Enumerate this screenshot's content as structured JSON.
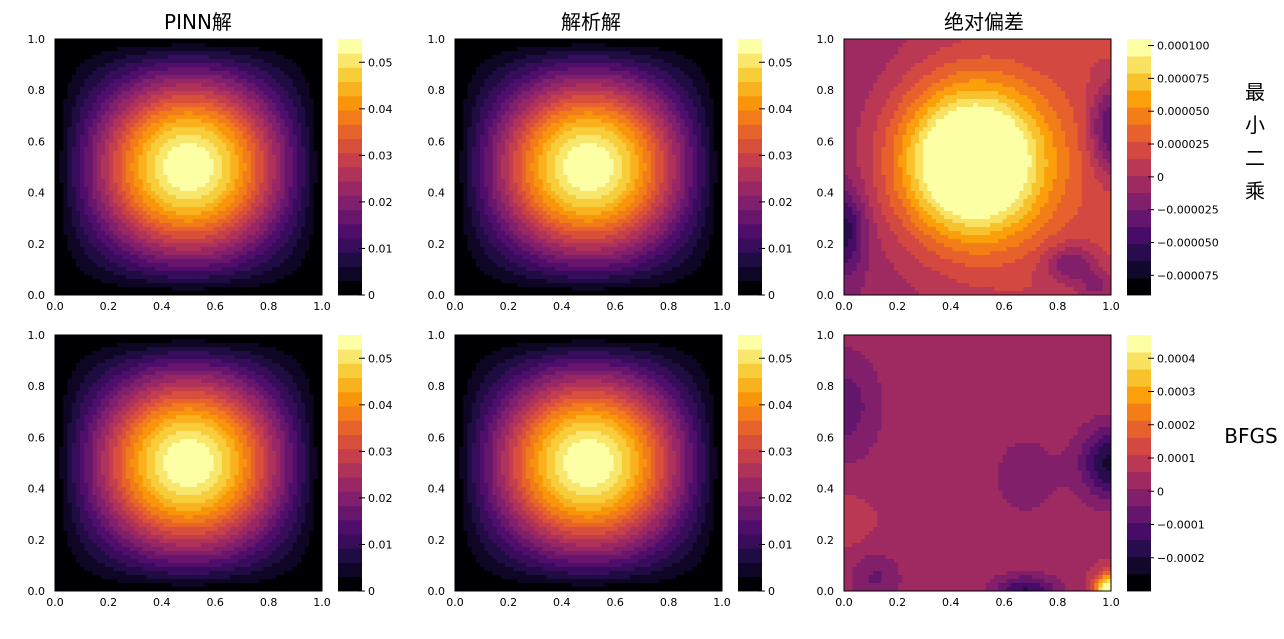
{
  "columns": [
    {
      "title": "PINN解"
    },
    {
      "title": "解析解"
    },
    {
      "title": "绝对偏差"
    }
  ],
  "rows": [
    {
      "label_chars": [
        "最",
        "小",
        "二",
        "乘"
      ]
    },
    {
      "label": "BFGS"
    }
  ],
  "colormap": {
    "name": "inferno",
    "stops": [
      "#000004",
      "#1b0c41",
      "#4a0c6b",
      "#781c6d",
      "#a52c60",
      "#cf4446",
      "#ed6925",
      "#fb9b06",
      "#f7d13d",
      "#fcffa4"
    ]
  },
  "chart_data": [
    {
      "type": "contour",
      "row": 0,
      "col": 0,
      "title": "PINN解",
      "xlim": [
        0.0,
        1.0
      ],
      "ylim": [
        0.0,
        1.0
      ],
      "xticks": [
        "0.0",
        "0.2",
        "0.4",
        "0.6",
        "0.8",
        "1.0"
      ],
      "yticks": [
        "0.0",
        "0.2",
        "0.4",
        "0.6",
        "0.8",
        "1.0"
      ],
      "value_range": [
        0,
        0.055
      ],
      "levels": 18,
      "colorbar_ticks": [
        {
          "value": 0,
          "label": "0"
        },
        {
          "value": 0.01,
          "label": "0.01"
        },
        {
          "value": 0.02,
          "label": "0.02"
        },
        {
          "value": 0.03,
          "label": "0.03"
        },
        {
          "value": 0.04,
          "label": "0.04"
        },
        {
          "value": 0.05,
          "label": "0.05"
        }
      ]
    },
    {
      "type": "contour",
      "row": 0,
      "col": 1,
      "title": "解析解",
      "xlim": [
        0.0,
        1.0
      ],
      "ylim": [
        0.0,
        1.0
      ],
      "xticks": [
        "0.0",
        "0.2",
        "0.4",
        "0.6",
        "0.8",
        "1.0"
      ],
      "yticks": [
        "0.0",
        "0.2",
        "0.4",
        "0.6",
        "0.8",
        "1.0"
      ],
      "value_range": [
        0,
        0.055
      ],
      "levels": 18,
      "colorbar_ticks": [
        {
          "value": 0,
          "label": "0"
        },
        {
          "value": 0.01,
          "label": "0.01"
        },
        {
          "value": 0.02,
          "label": "0.02"
        },
        {
          "value": 0.03,
          "label": "0.03"
        },
        {
          "value": 0.04,
          "label": "0.04"
        },
        {
          "value": 0.05,
          "label": "0.05"
        }
      ]
    },
    {
      "type": "contour",
      "row": 0,
      "col": 2,
      "title": "绝对偏差",
      "xlim": [
        0.0,
        1.0
      ],
      "ylim": [
        0.0,
        1.0
      ],
      "xticks": [
        "0.0",
        "0.2",
        "0.4",
        "0.6",
        "0.8",
        "1.0"
      ],
      "yticks": [
        "0.0",
        "0.2",
        "0.4",
        "0.6",
        "0.8",
        "1.0"
      ],
      "value_range": [
        -9e-05,
        0.000105
      ],
      "levels": 15,
      "colorbar_ticks": [
        {
          "value": -7.5e-05,
          "label": "−0.000075"
        },
        {
          "value": -5e-05,
          "label": "−0.000050"
        },
        {
          "value": -2.5e-05,
          "label": "−0.000025"
        },
        {
          "value": 0,
          "label": "0"
        },
        {
          "value": 2.5e-05,
          "label": "0.000025"
        },
        {
          "value": 5e-05,
          "label": "0.000050"
        },
        {
          "value": 7.5e-05,
          "label": "0.000075"
        },
        {
          "value": 0.0001,
          "label": "0.000100"
        }
      ]
    },
    {
      "type": "contour",
      "row": 1,
      "col": 0,
      "xlim": [
        0.0,
        1.0
      ],
      "ylim": [
        0.0,
        1.0
      ],
      "xticks": [
        "0.0",
        "0.2",
        "0.4",
        "0.6",
        "0.8",
        "1.0"
      ],
      "yticks": [
        "0.0",
        "0.2",
        "0.4",
        "0.6",
        "0.8",
        "1.0"
      ],
      "value_range": [
        0,
        0.055
      ],
      "levels": 18,
      "colorbar_ticks": [
        {
          "value": 0,
          "label": "0"
        },
        {
          "value": 0.01,
          "label": "0.01"
        },
        {
          "value": 0.02,
          "label": "0.02"
        },
        {
          "value": 0.03,
          "label": "0.03"
        },
        {
          "value": 0.04,
          "label": "0.04"
        },
        {
          "value": 0.05,
          "label": "0.05"
        }
      ]
    },
    {
      "type": "contour",
      "row": 1,
      "col": 1,
      "xlim": [
        0.0,
        1.0
      ],
      "ylim": [
        0.0,
        1.0
      ],
      "xticks": [
        "0.0",
        "0.2",
        "0.4",
        "0.6",
        "0.8",
        "1.0"
      ],
      "yticks": [
        "0.0",
        "0.2",
        "0.4",
        "0.6",
        "0.8",
        "1.0"
      ],
      "value_range": [
        0,
        0.055
      ],
      "levels": 18,
      "colorbar_ticks": [
        {
          "value": 0,
          "label": "0"
        },
        {
          "value": 0.01,
          "label": "0.01"
        },
        {
          "value": 0.02,
          "label": "0.02"
        },
        {
          "value": 0.03,
          "label": "0.03"
        },
        {
          "value": 0.04,
          "label": "0.04"
        },
        {
          "value": 0.05,
          "label": "0.05"
        }
      ]
    },
    {
      "type": "contour",
      "row": 1,
      "col": 2,
      "xlim": [
        0.0,
        1.0
      ],
      "ylim": [
        0.0,
        1.0
      ],
      "xticks": [
        "0.0",
        "0.2",
        "0.4",
        "0.6",
        "0.8",
        "1.0"
      ],
      "yticks": [
        "0.0",
        "0.2",
        "0.4",
        "0.6",
        "0.8",
        "1.0"
      ],
      "value_range": [
        -0.0003,
        0.00047
      ],
      "levels": 15,
      "colorbar_ticks": [
        {
          "value": -0.0002,
          "label": "−0.0002"
        },
        {
          "value": -0.0001,
          "label": "−0.0001"
        },
        {
          "value": 0,
          "label": "0"
        },
        {
          "value": 0.0001,
          "label": "0.0001"
        },
        {
          "value": 0.0002,
          "label": "0.0002"
        },
        {
          "value": 0.0003,
          "label": "0.0003"
        },
        {
          "value": 0.0004,
          "label": "0.0004"
        }
      ]
    }
  ]
}
